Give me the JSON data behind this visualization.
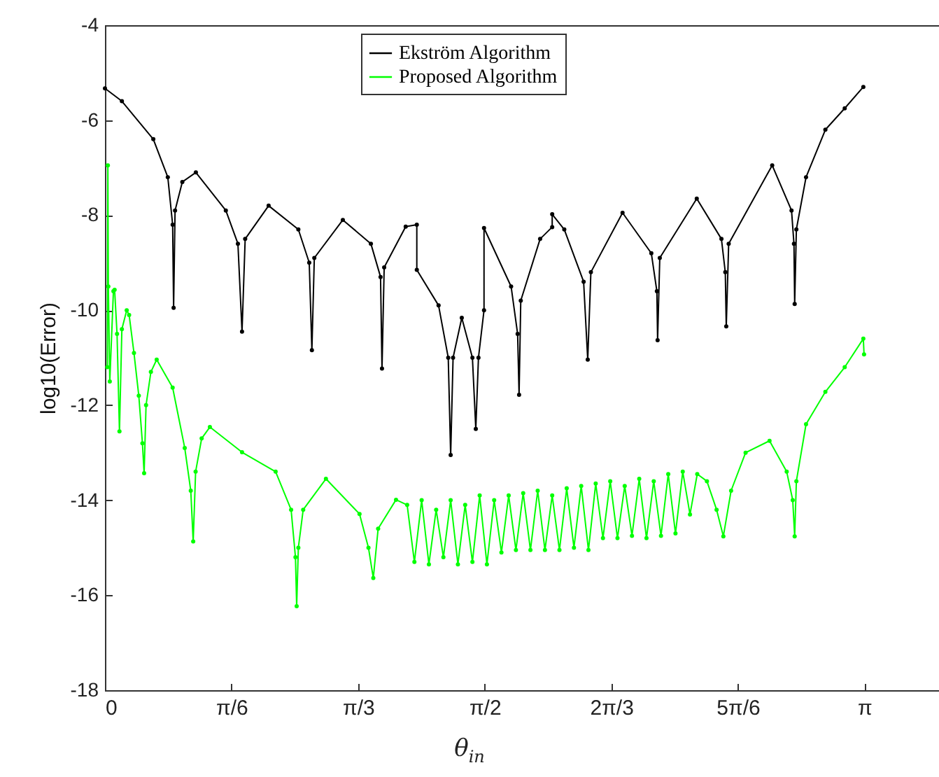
{
  "chart_data": {
    "type": "line",
    "xlabel": "θ$_{in}$",
    "ylabel": "log10(Error)",
    "xlim": [
      0,
      3.45
    ],
    "ylim": [
      -18,
      -4
    ],
    "xticks": [
      {
        "value": 0,
        "label": "0"
      },
      {
        "value": 0.5236,
        "label": "π/6"
      },
      {
        "value": 1.0472,
        "label": "π/3"
      },
      {
        "value": 1.5708,
        "label": "π/2"
      },
      {
        "value": 2.0944,
        "label": "2π/3"
      },
      {
        "value": 2.618,
        "label": "5π/6"
      },
      {
        "value": 3.1416,
        "label": "π"
      }
    ],
    "yticks": [
      -18,
      -16,
      -14,
      -12,
      -10,
      -8,
      -6,
      -4
    ],
    "grid": false,
    "legend": "top",
    "marker": "circle",
    "line_style": "solid",
    "series": [
      {
        "name": "Ekström Algorithm",
        "color": "#000000",
        "x": [
          0,
          0.07,
          0.2,
          0.26,
          0.28,
          0.284,
          0.29,
          0.32,
          0.376,
          0.5,
          0.55,
          0.567,
          0.58,
          0.677,
          0.8,
          0.845,
          0.856,
          0.866,
          0.984,
          1.1,
          1.14,
          1.146,
          1.155,
          1.244,
          1.29,
          1.29,
          1.38,
          1.42,
          1.43,
          1.44,
          1.476,
          1.52,
          1.534,
          1.545,
          1.568,
          1.568,
          1.68,
          1.707,
          1.713,
          1.72,
          1.8,
          1.85,
          1.85,
          1.9,
          1.98,
          1.997,
          2.01,
          2.141,
          2.26,
          2.283,
          2.286,
          2.295,
          2.448,
          2.55,
          2.566,
          2.57,
          2.58,
          2.76,
          2.84,
          2.85,
          2.853,
          2.86,
          2.9,
          2.98,
          3.06,
          3.137
        ],
        "values": [
          -5.33,
          -5.6,
          -6.4,
          -7.2,
          -8.2,
          -9.95,
          -7.9,
          -7.3,
          -7.1,
          -7.9,
          -8.6,
          -10.45,
          -8.5,
          -7.8,
          -8.3,
          -9.0,
          -10.84,
          -8.9,
          -8.1,
          -8.6,
          -9.3,
          -11.23,
          -9.1,
          -8.24,
          -8.2,
          -9.15,
          -9.9,
          -11.0,
          -13.05,
          -11.0,
          -10.16,
          -11.0,
          -12.5,
          -11.0,
          -10.0,
          -8.27,
          -9.5,
          -10.5,
          -11.78,
          -9.8,
          -8.5,
          -8.25,
          -7.98,
          -8.3,
          -9.4,
          -11.04,
          -9.2,
          -7.95,
          -8.8,
          -9.6,
          -10.63,
          -8.9,
          -7.65,
          -8.5,
          -9.2,
          -10.34,
          -8.6,
          -6.95,
          -7.9,
          -8.6,
          -9.87,
          -8.3,
          -7.2,
          -6.2,
          -5.75,
          -5.3
        ]
      },
      {
        "name": "Proposed Algorithm",
        "color": "#00ff00",
        "x": [
          0.01,
          0.012,
          0.014,
          0.02,
          0.035,
          0.04,
          0.05,
          0.06,
          0.07,
          0.09,
          0.1,
          0.12,
          0.14,
          0.155,
          0.162,
          0.17,
          0.19,
          0.214,
          0.28,
          0.33,
          0.355,
          0.365,
          0.375,
          0.4,
          0.434,
          0.567,
          0.706,
          0.77,
          0.788,
          0.793,
          0.8,
          0.82,
          0.914,
          1.053,
          1.09,
          1.11,
          1.13,
          1.204,
          1.25,
          1.28,
          1.31,
          1.34,
          1.37,
          1.4,
          1.43,
          1.46,
          1.49,
          1.52,
          1.55,
          1.58,
          1.61,
          1.64,
          1.67,
          1.7,
          1.73,
          1.76,
          1.79,
          1.82,
          1.85,
          1.88,
          1.91,
          1.94,
          1.97,
          2.0,
          2.03,
          2.06,
          2.09,
          2.12,
          2.15,
          2.18,
          2.21,
          2.24,
          2.27,
          2.3,
          2.33,
          2.36,
          2.39,
          2.42,
          2.45,
          2.49,
          2.53,
          2.558,
          2.59,
          2.65,
          2.749,
          2.82,
          2.845,
          2.853,
          2.86,
          2.9,
          2.98,
          3.06,
          3.137,
          3.14
        ],
        "values": [
          -11.2,
          -6.95,
          -9.5,
          -11.5,
          -9.6,
          -9.57,
          -10.5,
          -12.55,
          -10.4,
          -10.0,
          -10.1,
          -10.9,
          -11.8,
          -12.8,
          -13.43,
          -12.0,
          -11.3,
          -11.04,
          -11.63,
          -12.9,
          -13.8,
          -14.87,
          -13.4,
          -12.7,
          -12.46,
          -12.99,
          -13.4,
          -14.2,
          -15.2,
          -16.23,
          -15.0,
          -14.2,
          -13.55,
          -14.29,
          -15.0,
          -15.64,
          -14.6,
          -13.99,
          -14.1,
          -15.3,
          -14.0,
          -15.35,
          -14.2,
          -15.2,
          -14.0,
          -15.35,
          -14.1,
          -15.3,
          -13.9,
          -15.35,
          -14.0,
          -15.1,
          -13.9,
          -15.05,
          -13.85,
          -15.05,
          -13.8,
          -15.05,
          -13.9,
          -15.05,
          -13.75,
          -15.0,
          -13.7,
          -15.05,
          -13.65,
          -14.8,
          -13.6,
          -14.8,
          -13.7,
          -14.75,
          -13.55,
          -14.8,
          -13.6,
          -14.75,
          -13.45,
          -14.7,
          -13.4,
          -14.3,
          -13.45,
          -13.6,
          -14.2,
          -14.76,
          -13.8,
          -13.0,
          -12.75,
          -13.4,
          -14.0,
          -14.76,
          -13.6,
          -12.4,
          -11.72,
          -11.2,
          -10.6,
          -10.93
        ]
      }
    ]
  }
}
